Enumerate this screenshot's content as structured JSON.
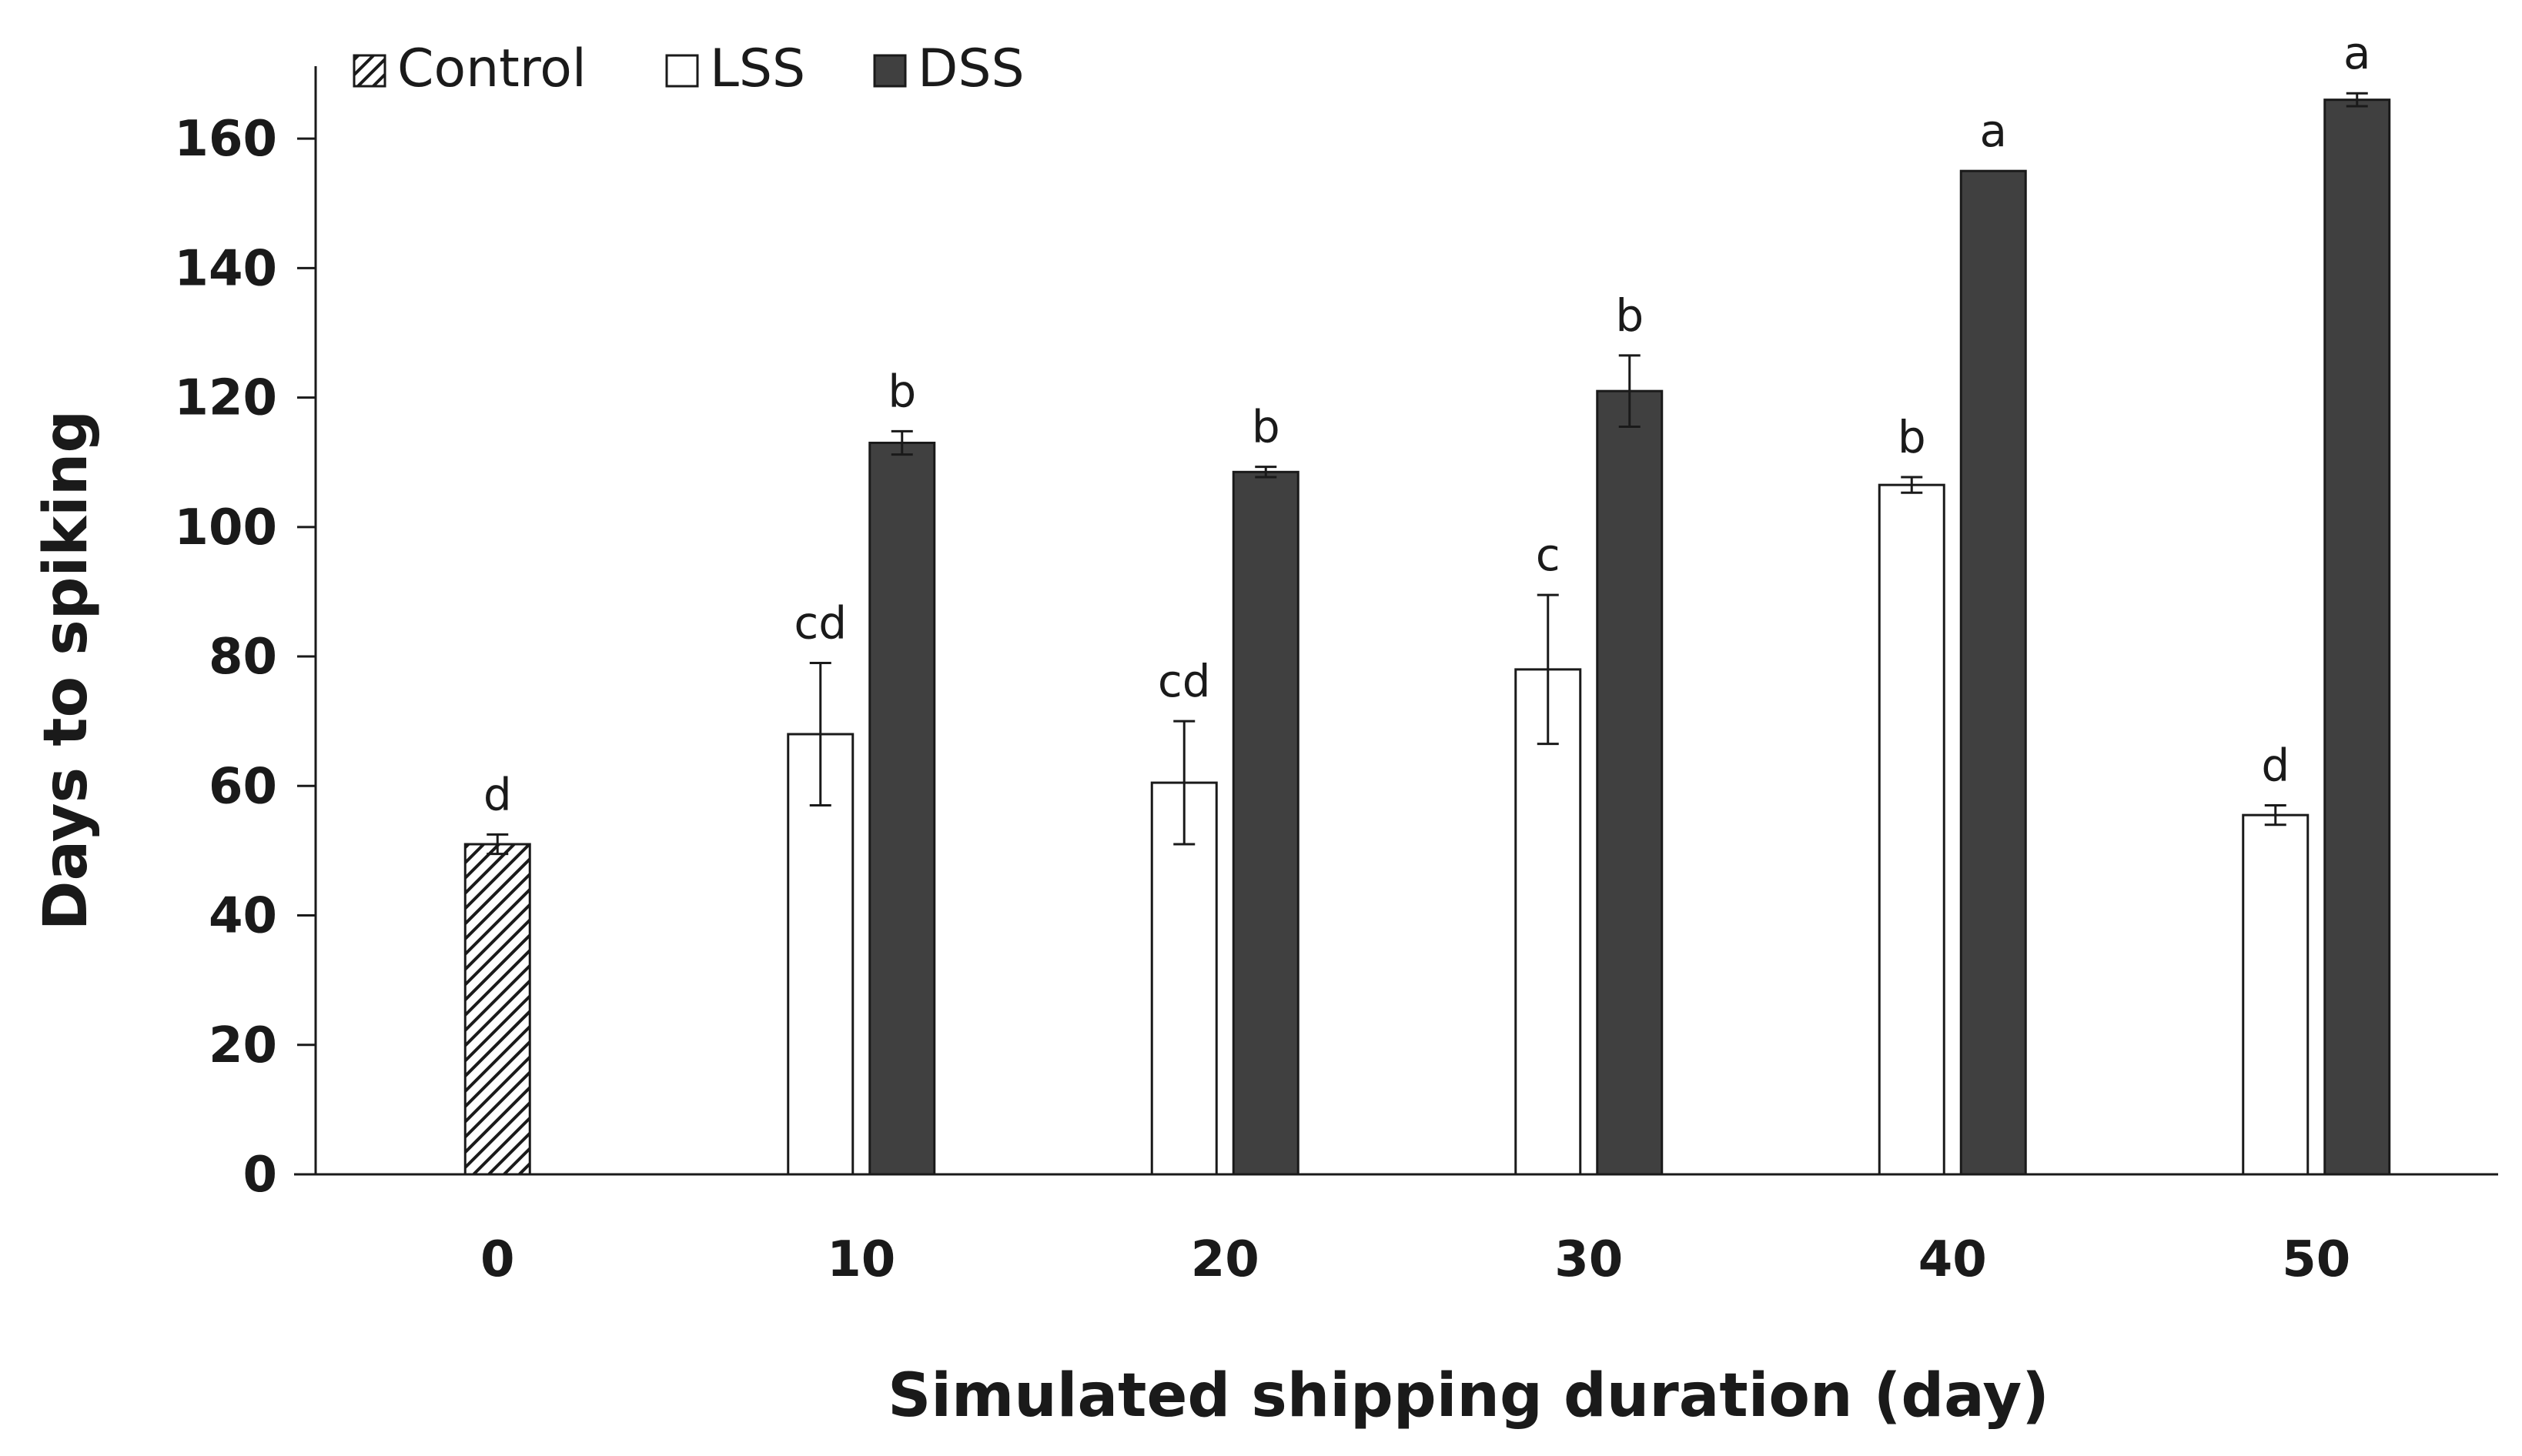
{
  "chart_data": {
    "type": "bar",
    "title": "",
    "xlabel": "Simulated shipping duration (day)",
    "ylabel": "Days to spiking",
    "ylim": [
      0,
      170
    ],
    "yticks": [
      0,
      20,
      40,
      60,
      80,
      100,
      120,
      140,
      160
    ],
    "categories": [
      "0",
      "10",
      "20",
      "30",
      "40",
      "50"
    ],
    "legend_position": "top-left",
    "series": [
      {
        "name": "Control",
        "pattern": "hatched",
        "color": "#1a1a1a",
        "values": [
          51,
          null,
          null,
          null,
          null,
          null
        ],
        "errors": [
          1.5,
          null,
          null,
          null,
          null,
          null
        ],
        "labels": [
          "d",
          null,
          null,
          null,
          null,
          null
        ]
      },
      {
        "name": "LSS",
        "pattern": "empty",
        "color": "#ffffff",
        "values": [
          null,
          68,
          60.5,
          78,
          106.5,
          55.5
        ],
        "errors": [
          null,
          11,
          9.5,
          11.5,
          1.2,
          1.5
        ],
        "labels": [
          null,
          "cd",
          "cd",
          "c",
          "b",
          "d"
        ]
      },
      {
        "name": "DSS",
        "pattern": "solid",
        "color": "#404040",
        "values": [
          null,
          113,
          108.5,
          121,
          155,
          166
        ],
        "errors": [
          null,
          1.8,
          0.8,
          5.5,
          0,
          1
        ],
        "labels": [
          null,
          "b",
          "b",
          "b",
          "a",
          "a"
        ]
      }
    ]
  }
}
